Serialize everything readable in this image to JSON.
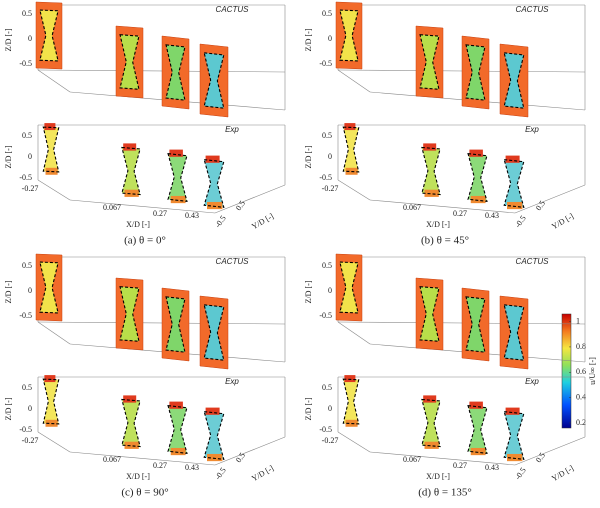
{
  "panels": [
    {
      "caption": "(a) θ = 0°",
      "top": {
        "label": "CACTUS",
        "zlabel": "Z/D [-]",
        "zticks": [
          0.5,
          0,
          -0.5
        ]
      },
      "bottom": {
        "label": "Exp",
        "zlabel": "Z/D [-]",
        "zticks": [
          0.5,
          0,
          -0.5
        ],
        "xlabel": "X/D [-]",
        "xticks": [
          -0.27,
          0.067,
          0.27,
          0.43
        ],
        "ylabel": "Y/D [-]",
        "yticks": [
          -0.5,
          0.5
        ]
      }
    },
    {
      "caption": "(b) θ = 45°",
      "top": {
        "label": "CACTUS",
        "zlabel": "Z/D [-]",
        "zticks": [
          0.5,
          0,
          -0.5
        ]
      },
      "bottom": {
        "label": "Exp",
        "zlabel": "Z/D [-]",
        "zticks": [
          0.5,
          0,
          -0.5
        ],
        "xlabel": "X/D [-]",
        "xticks": [
          -0.27,
          0.067,
          0.27,
          0.43
        ],
        "ylabel": "Y/D [-]",
        "yticks": [
          -0.5,
          0.5
        ]
      }
    },
    {
      "caption": "(c) θ = 90°",
      "top": {
        "label": "CACTUS",
        "zlabel": "Z/D [-]",
        "zticks": [
          0.5,
          0,
          -0.5
        ]
      },
      "bottom": {
        "label": "Exp",
        "zlabel": "Z/D [-]",
        "zticks": [
          0.5,
          0,
          -0.5
        ],
        "xlabel": "X/D [-]",
        "xticks": [
          -0.27,
          0.067,
          0.27,
          0.43
        ],
        "ylabel": "Y/D [-]",
        "yticks": [
          -0.5,
          0.5
        ]
      }
    },
    {
      "caption": "(d) θ = 135°",
      "top": {
        "label": "CACTUS",
        "zlabel": "Z/D [-]",
        "zticks": [
          0.5,
          0,
          -0.5
        ]
      },
      "bottom": {
        "label": "Exp",
        "zlabel": "Z/D [-]",
        "zticks": [
          0.5,
          0,
          -0.5
        ],
        "xlabel": "X/D [-]",
        "xticks": [
          -0.27,
          0.067,
          0.27,
          0.43
        ],
        "ylabel": "Y/D [-]",
        "yticks": [
          -0.5,
          0.5
        ]
      }
    }
  ],
  "colorbar": {
    "label": "u/U∞ [-]",
    "lim": [
      0.16,
      1.06
    ],
    "ticks": [
      0.2,
      0.4,
      0.6,
      0.8,
      1
    ]
  }
}
